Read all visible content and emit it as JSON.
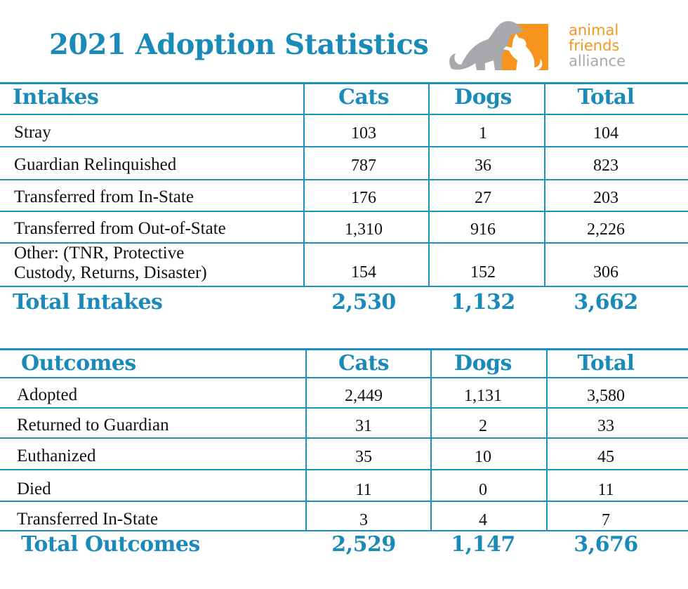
{
  "title": "2021 Adoption Statistics",
  "logo": {
    "line1": "animal",
    "line2": "friends",
    "line3": "alliance",
    "orange": "#f7941d",
    "gray": "#a7a9ac"
  },
  "colors": {
    "accent": "#1a8ab8",
    "rule": "#1b8fc2"
  },
  "intakes": {
    "headers": [
      "Intakes",
      "Cats",
      "Dogs",
      "Total"
    ],
    "rows": [
      {
        "label": "Stray",
        "cats": "103",
        "dogs": "1",
        "total": "104"
      },
      {
        "label": "Guardian Relinquished",
        "cats": "787",
        "dogs": "36",
        "total": "823"
      },
      {
        "label": "Transferred from In-State",
        "cats": "176",
        "dogs": "27",
        "total": "203"
      },
      {
        "label": "Transferred from Out-of-State",
        "cats": "1,310",
        "dogs": "916",
        "total": "2,226"
      },
      {
        "label": "Other: (TNR, Protective\nCustody, Returns, Disaster)",
        "cats": "154",
        "dogs": "152",
        "total": "306"
      }
    ],
    "total": {
      "label": "Total Intakes",
      "cats": "2,530",
      "dogs": "1,132",
      "total": "3,662"
    }
  },
  "outcomes": {
    "headers": [
      "Outcomes",
      "Cats",
      "Dogs",
      "Total"
    ],
    "rows": [
      {
        "label": "Adopted",
        "cats": "2,449",
        "dogs": "1,131",
        "total": "3,580"
      },
      {
        "label": "Returned to Guardian",
        "cats": "31",
        "dogs": "2",
        "total": "33"
      },
      {
        "label": "Euthanized",
        "cats": "35",
        "dogs": "10",
        "total": "45"
      },
      {
        "label": "Died",
        "cats": "11",
        "dogs": "0",
        "total": "11"
      },
      {
        "label": "Transferred In-State",
        "cats": "3",
        "dogs": "4",
        "total": "7"
      }
    ],
    "total": {
      "label": "Total Outcomes",
      "cats": "2,529",
      "dogs": "1,147",
      "total": "3,676"
    }
  }
}
